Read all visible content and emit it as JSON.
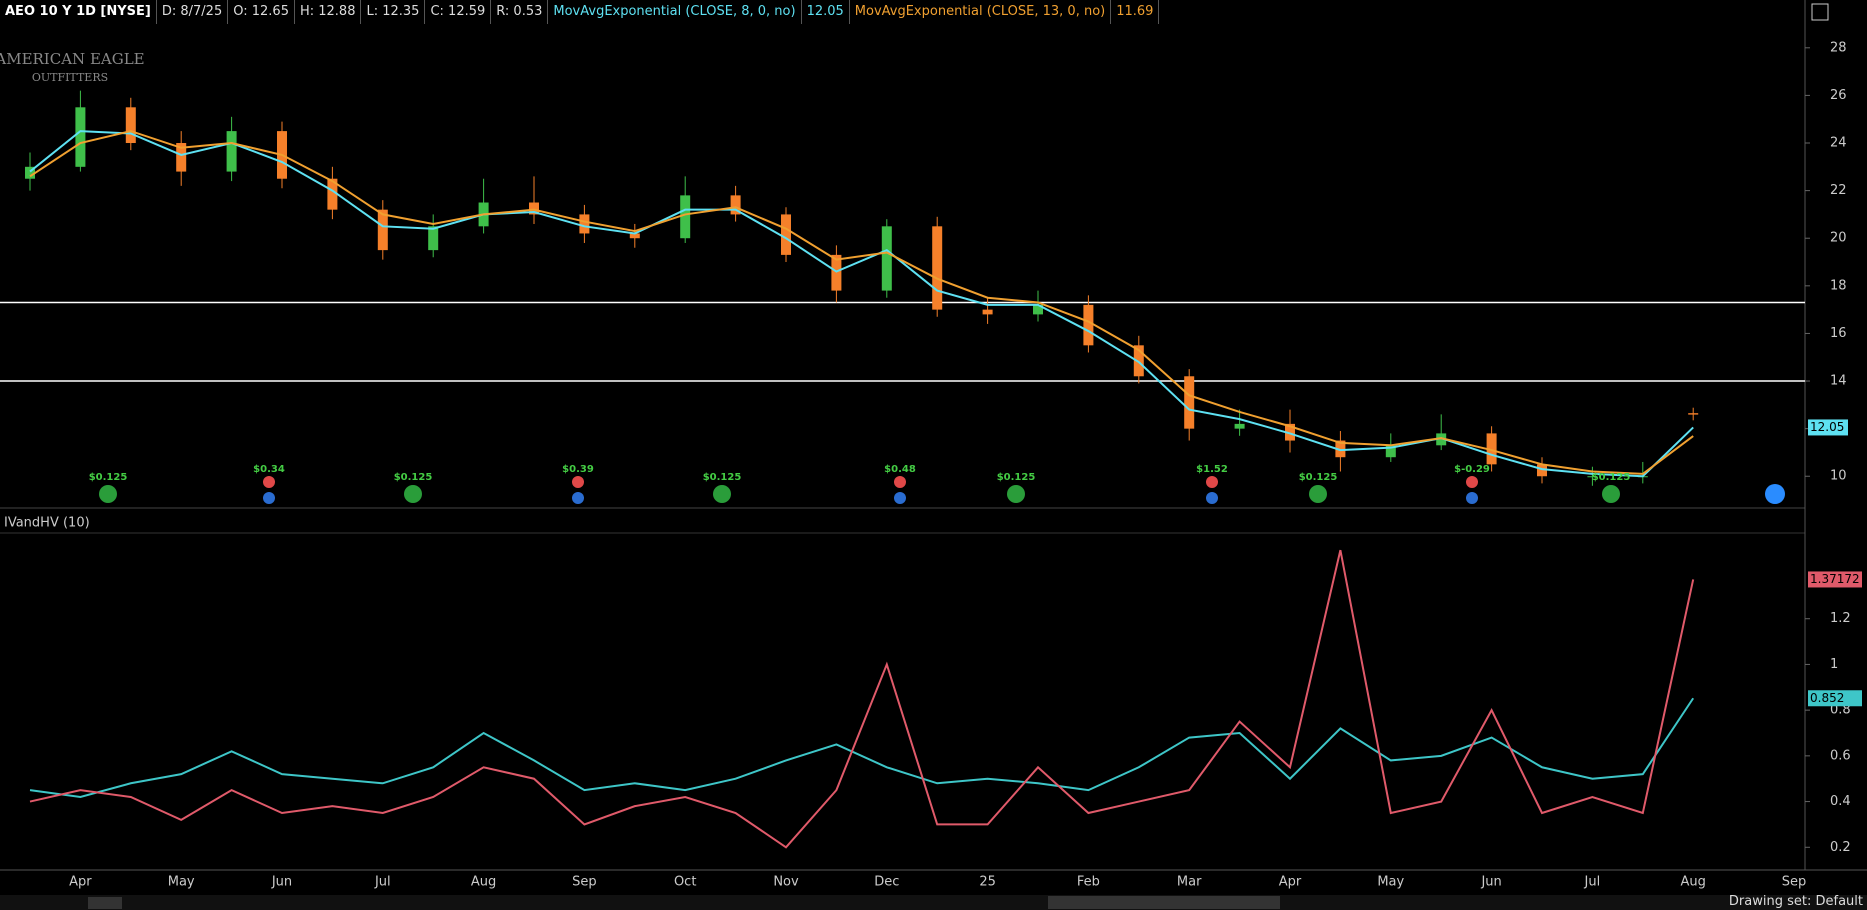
{
  "header": {
    "symbol": "AEO 10 Y 1D [NYSE]",
    "fields": [
      "D: 8/7/25",
      "O: 12.65",
      "H: 12.88",
      "L: 12.35",
      "C: 12.59",
      "R: 0.53"
    ],
    "studies": [
      {
        "name": "MovAvgExponential (CLOSE, 8, 0, no)",
        "value": "12.05"
      },
      {
        "name": "MovAvgExponential (CLOSE, 13, 0, no)",
        "value": "11.69"
      }
    ]
  },
  "logo": [
    "AMERICAN EAGLE",
    "OUTFITTERS"
  ],
  "chart_data": [
    {
      "type": "candlestick",
      "categories": [
        null,
        "Apr",
        null,
        "May",
        null,
        "Jun",
        null,
        "Jul",
        null,
        "Aug",
        null,
        "Sep",
        null,
        "Oct",
        null,
        "Nov",
        null,
        "Dec",
        null,
        "25",
        null,
        "Feb",
        null,
        "Mar",
        null,
        "Apr",
        null,
        "May",
        null,
        "Jun",
        null,
        "Jul",
        null,
        "Aug",
        null,
        "Sep"
      ],
      "open": [
        22.5,
        23,
        25.5,
        24,
        22.8,
        24.5,
        22.5,
        21.2,
        19.5,
        20.5,
        21.5,
        21,
        20.2,
        20,
        21.8,
        21,
        19.3,
        17.8,
        20.5,
        17,
        16.8,
        17.2,
        15.5,
        14.2,
        12,
        12.2,
        11.5,
        10.8,
        11.3,
        11.8,
        10.5,
        10,
        10,
        12.65,
        null,
        null
      ],
      "high": [
        23.6,
        26.2,
        25.9,
        24.5,
        25.1,
        24.9,
        23,
        21.6,
        21,
        22.5,
        22.6,
        21.4,
        20.6,
        22.6,
        22.2,
        21.3,
        19.7,
        20.8,
        20.9,
        17.5,
        17.8,
        17.6,
        15.9,
        14.5,
        12.8,
        12.8,
        11.9,
        11.8,
        12.6,
        12.1,
        10.8,
        10.4,
        10.6,
        12.88,
        null,
        null
      ],
      "low": [
        22,
        22.8,
        23.7,
        22.2,
        22.4,
        22.1,
        20.8,
        19.1,
        19.2,
        20.2,
        20.6,
        19.8,
        19.6,
        19.8,
        20.7,
        19,
        17.3,
        17.5,
        16.7,
        16.4,
        16.5,
        15.2,
        13.9,
        11.5,
        11.7,
        11,
        10.2,
        10.6,
        11.1,
        10.2,
        9.7,
        9.6,
        9.7,
        12.35,
        null,
        null
      ],
      "close": [
        23,
        25.5,
        24,
        22.8,
        24.5,
        22.5,
        21.2,
        19.5,
        20.5,
        21.5,
        21,
        20.2,
        20,
        21.8,
        21,
        19.3,
        17.8,
        20.5,
        17,
        16.8,
        17.2,
        15.5,
        14.2,
        12,
        12.2,
        11.5,
        10.8,
        11.3,
        11.8,
        10.5,
        10,
        10,
        10,
        12.59,
        null,
        null
      ],
      "up_color": "#3fbf4a",
      "down_color": "#f5802a",
      "series": [
        {
          "name": "MovAvgExponential (CLOSE, 8, 0, no)",
          "color": "#5ee1f2",
          "values": [
            22.8,
            24.5,
            24.4,
            23.5,
            24,
            23.2,
            22,
            20.5,
            20.4,
            21,
            21.1,
            20.5,
            20.2,
            21.2,
            21.2,
            20,
            18.6,
            19.5,
            17.8,
            17.2,
            17.2,
            16.1,
            14.8,
            12.8,
            12.4,
            11.8,
            11.1,
            11.2,
            11.6,
            10.9,
            10.3,
            10.1,
            10,
            12.05,
            null,
            null
          ]
        },
        {
          "name": "MovAvgExponential (CLOSE, 13, 0, no)",
          "color": "#f0a030",
          "values": [
            22.6,
            24,
            24.5,
            23.8,
            24,
            23.5,
            22.4,
            21,
            20.6,
            21,
            21.2,
            20.7,
            20.3,
            21,
            21.3,
            20.4,
            19.1,
            19.4,
            18.3,
            17.5,
            17.3,
            16.5,
            15.3,
            13.4,
            12.7,
            12.1,
            11.4,
            11.3,
            11.6,
            11.1,
            10.5,
            10.2,
            10.1,
            11.69,
            null,
            null
          ]
        }
      ],
      "hlines": [
        17.3,
        14.0
      ],
      "ylim": [
        8.75,
        29
      ],
      "yticks": [
        10,
        12,
        14,
        16,
        18,
        20,
        22,
        24,
        26,
        28
      ],
      "dividends": [
        "$0.125",
        "$0.125",
        "$0.125",
        "$0.125",
        "$0.125",
        "$0.125"
      ],
      "earnings": [
        "$0.34",
        "$0.39",
        "$0.48",
        "$1.52",
        "$-0.29"
      ]
    },
    {
      "type": "line",
      "title": "IVandHV (10)",
      "series": [
        {
          "name": "0.852",
          "color": "#3ec6c8",
          "values": [
            0.45,
            0.42,
            0.48,
            0.52,
            0.62,
            0.52,
            0.5,
            0.48,
            0.55,
            0.7,
            0.58,
            0.45,
            0.48,
            0.45,
            0.5,
            0.58,
            0.65,
            0.55,
            0.48,
            0.5,
            0.48,
            0.45,
            0.55,
            0.68,
            0.7,
            0.5,
            0.72,
            0.58,
            0.6,
            0.68,
            0.55,
            0.5,
            0.52,
            0.852,
            null,
            null
          ]
        },
        {
          "name": "1.37172",
          "color": "#e05a6a",
          "values": [
            0.4,
            0.45,
            0.42,
            0.32,
            0.45,
            0.35,
            0.38,
            0.35,
            0.42,
            0.55,
            0.5,
            0.3,
            0.38,
            0.42,
            0.35,
            0.2,
            0.45,
            1.0,
            0.3,
            0.3,
            0.55,
            0.35,
            0.4,
            0.45,
            0.75,
            0.55,
            1.5,
            0.35,
            0.4,
            0.8,
            0.35,
            0.42,
            0.35,
            1.37172,
            null,
            null
          ]
        }
      ],
      "ylim": [
        0.105,
        1.575
      ],
      "yticks": [
        0.2,
        0.4,
        0.6,
        0.8,
        1,
        1.2
      ]
    }
  ],
  "footer": "Drawing set: Default"
}
